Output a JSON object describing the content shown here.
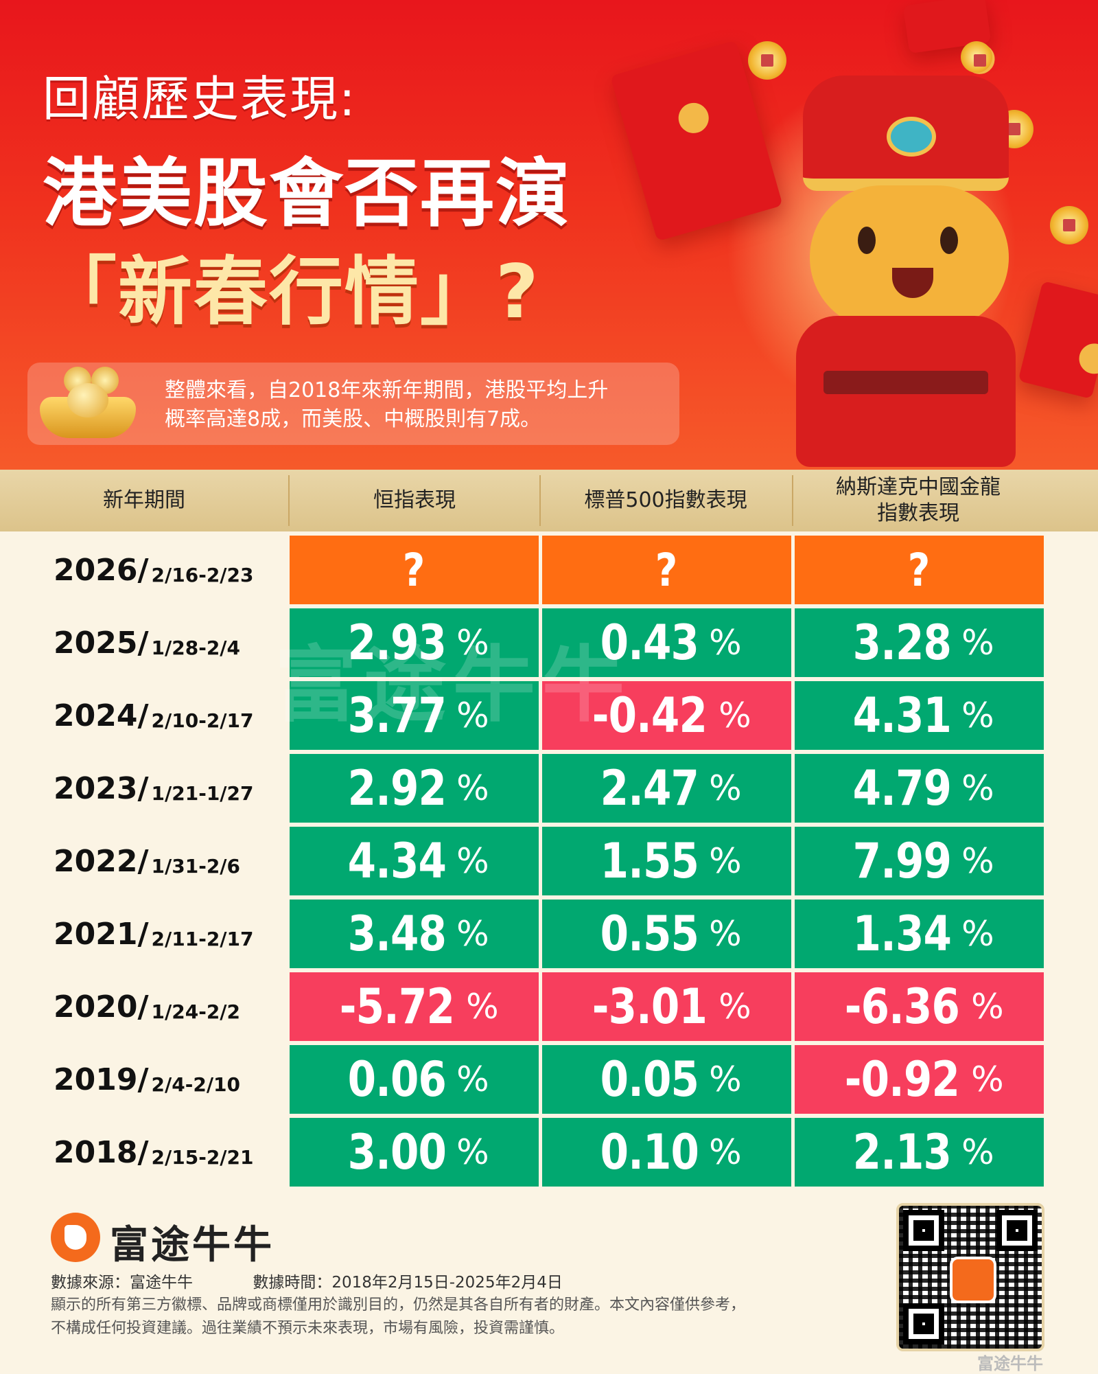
{
  "hero": {
    "title_line1": "回顧歷史表現:",
    "title_line2": "港美股會否再演",
    "title_line3": "「新春行情」?",
    "summary_line1": "整體來看，自2018年來新年期間，港股平均上升",
    "summary_line2": "概率高達8成，而美股、中概股則有7成。"
  },
  "table": {
    "headers": {
      "period": "新年期間",
      "hsi": "恒指表現",
      "sp500": "標普500指數表現",
      "nasdaq_l1": "納斯達克中國金龍",
      "nasdaq_l2": "指數表現"
    },
    "rows": [
      {
        "year": "2026/",
        "dates": "2/16-2/23",
        "hsi": "?",
        "sp500": "?",
        "nasdaq": "?",
        "hsi_pct": "",
        "sp500_pct": "",
        "nasdaq_pct": "",
        "colors": [
          "orange",
          "orange",
          "orange"
        ]
      },
      {
        "year": "2025/",
        "dates": "1/28-2/4",
        "hsi": "2.93",
        "sp500": "0.43",
        "nasdaq": "3.28",
        "hsi_pct": "%",
        "sp500_pct": "%",
        "nasdaq_pct": "%",
        "colors": [
          "green",
          "green",
          "green"
        ]
      },
      {
        "year": "2024/",
        "dates": "2/10-2/17",
        "hsi": "3.77",
        "sp500": "-0.42",
        "nasdaq": "4.31",
        "hsi_pct": "%",
        "sp500_pct": "%",
        "nasdaq_pct": "%",
        "colors": [
          "green",
          "red",
          "green"
        ]
      },
      {
        "year": "2023/",
        "dates": "1/21-1/27",
        "hsi": "2.92",
        "sp500": "2.47",
        "nasdaq": "4.79",
        "hsi_pct": "%",
        "sp500_pct": "%",
        "nasdaq_pct": "%",
        "colors": [
          "green",
          "green",
          "green"
        ]
      },
      {
        "year": "2022/",
        "dates": "1/31-2/6",
        "hsi": "4.34",
        "sp500": "1.55",
        "nasdaq": "7.99",
        "hsi_pct": "%",
        "sp500_pct": "%",
        "nasdaq_pct": "%",
        "colors": [
          "green",
          "green",
          "green"
        ]
      },
      {
        "year": "2021/",
        "dates": "2/11-2/17",
        "hsi": "3.48",
        "sp500": "0.55",
        "nasdaq": "1.34",
        "hsi_pct": "%",
        "sp500_pct": "%",
        "nasdaq_pct": "%",
        "colors": [
          "green",
          "green",
          "green"
        ]
      },
      {
        "year": "2020/",
        "dates": "1/24-2/2",
        "hsi": "-5.72",
        "sp500": "-3.01",
        "nasdaq": "-6.36",
        "hsi_pct": "%",
        "sp500_pct": "%",
        "nasdaq_pct": "%",
        "colors": [
          "red",
          "red",
          "red"
        ]
      },
      {
        "year": "2019/",
        "dates": "2/4-2/10",
        "hsi": "0.06",
        "sp500": "0.05",
        "nasdaq": "-0.92",
        "hsi_pct": "%",
        "sp500_pct": "%",
        "nasdaq_pct": "%",
        "colors": [
          "green",
          "green",
          "red"
        ]
      },
      {
        "year": "2018/",
        "dates": "2/15-2/21",
        "hsi": "3.00",
        "sp500": "0.10",
        "nasdaq": "2.13",
        "hsi_pct": "%",
        "sp500_pct": "%",
        "nasdaq_pct": "%",
        "colors": [
          "green",
          "green",
          "green"
        ]
      }
    ]
  },
  "watermark": "富途牛牛",
  "footer": {
    "brand": "富途牛牛",
    "source": "數據來源：富途牛牛",
    "time": "數據時間：2018年2月15日-2025年2月4日",
    "disclaimer1": "顯示的所有第三方徽標、品牌或商標僅用於識別目的，仍然是其各自所有者的財產。本文內容僅供參考，",
    "disclaimer2": "不構成任何投資建議。過往業績不預示未來表現，市場有風險，投資需謹慎。",
    "qr_caption": "富途牛牛"
  },
  "colors": {
    "green": "#01a870",
    "red": "#f73e5d",
    "orange": "#ff6d12"
  }
}
